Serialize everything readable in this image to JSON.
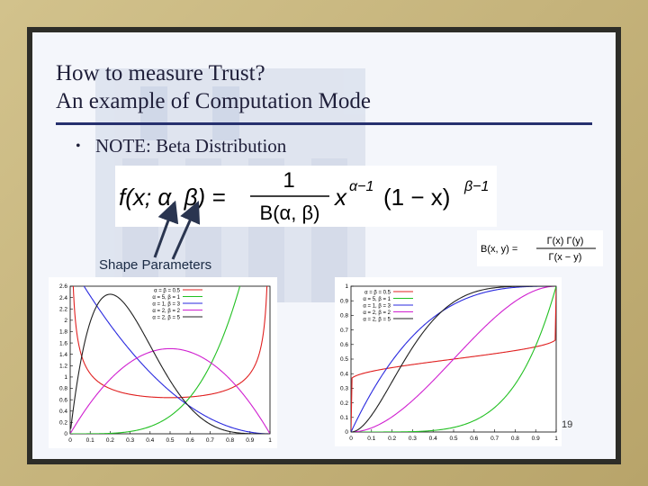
{
  "slide": {
    "title_line1": "How to measure Trust?",
    "title_line2": "An example of Computation Mode",
    "bullet_text": "NOTE: Beta Distribution",
    "shape_params_label": "Shape Parameters",
    "page_number": "19"
  },
  "formula": {
    "lhs": "f(x; α, β) =",
    "numerator": "1",
    "denominator": "B(α, β)",
    "rhs_base": "x",
    "rhs_exp1": "α−1",
    "rhs_paren": "(1 − x)",
    "rhs_exp2": "β−1"
  },
  "small_formula": {
    "lhs": "B(x, y) =",
    "numerator": "Γ(x) Γ(y)",
    "denominator": "Γ(x − y)"
  },
  "colors": {
    "red": "#e02020",
    "green": "#22c022",
    "blue": "#2a2adf",
    "magenta": "#d020d0",
    "black": "#202020"
  },
  "chart_data": [
    {
      "type": "line",
      "title": "",
      "xlabel": "",
      "ylabel": "",
      "xlim": [
        0,
        1
      ],
      "ylim": [
        0,
        2.6
      ],
      "x_ticks": [
        "0",
        "0.1",
        "0.2",
        "0.3",
        "0.4",
        "0.5",
        "0.6",
        "0.7",
        "0.8",
        "0.9",
        "1"
      ],
      "y_ticks": [
        "0",
        "0.2",
        "0.4",
        "0.6",
        "0.8",
        "1",
        "1.2",
        "1.4",
        "1.6",
        "1.8",
        "2",
        "2.2",
        "2.4",
        "2.6"
      ],
      "legend_position": "top-center",
      "series": [
        {
          "name": "α = β = 0.5",
          "color": "red",
          "alpha": 0.5,
          "beta": 0.5
        },
        {
          "name": "α = 5, β = 1",
          "color": "green",
          "alpha": 5,
          "beta": 1
        },
        {
          "name": "α = 1, β = 3",
          "color": "blue",
          "alpha": 1,
          "beta": 3
        },
        {
          "name": "α = 2, β = 2",
          "color": "magenta",
          "alpha": 2,
          "beta": 2
        },
        {
          "name": "α = 2, β = 5",
          "color": "black",
          "alpha": 2,
          "beta": 5
        }
      ]
    },
    {
      "type": "line",
      "title": "",
      "xlabel": "",
      "ylabel": "",
      "xlim": [
        0,
        1
      ],
      "ylim": [
        0,
        1
      ],
      "x_ticks": [
        "0",
        "0.1",
        "0.2",
        "0.3",
        "0.4",
        "0.5",
        "0.6",
        "0.7",
        "0.8",
        "0.9",
        "1"
      ],
      "y_ticks": [
        "0",
        "0.1",
        "0.2",
        "0.3",
        "0.4",
        "0.5",
        "0.6",
        "0.7",
        "0.8",
        "0.9",
        "1"
      ],
      "legend_position": "top-left",
      "series": [
        {
          "name": "α = β = 0.5",
          "color": "red",
          "alpha": 0.5,
          "beta": 0.5
        },
        {
          "name": "α = 5, β = 1",
          "color": "green",
          "alpha": 5,
          "beta": 1
        },
        {
          "name": "α = 1, β = 3",
          "color": "blue",
          "alpha": 1,
          "beta": 3
        },
        {
          "name": "α = 2, β = 2",
          "color": "magenta",
          "alpha": 2,
          "beta": 2
        },
        {
          "name": "α = 2, β = 5",
          "color": "black",
          "alpha": 2,
          "beta": 5
        }
      ]
    }
  ]
}
